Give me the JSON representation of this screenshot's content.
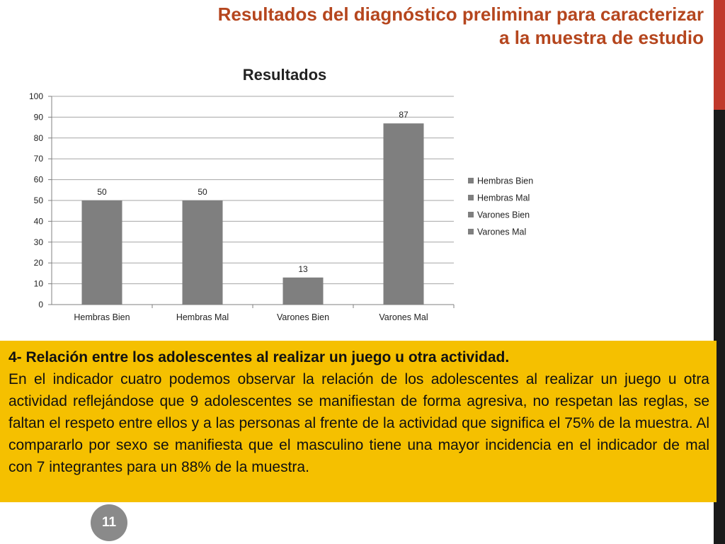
{
  "slide": {
    "title_line1": "Resultados del diagnóstico preliminar para caracterizar",
    "title_line2": "a la muestra de estudio",
    "page_number": "11"
  },
  "colors": {
    "title": "#b5461e",
    "bar": "#7f7f7f",
    "textbox_bg": "#f5c000",
    "accent_red": "#c0392b"
  },
  "chart_data": {
    "type": "bar",
    "title": "Resultados",
    "categories": [
      "Hembras Bien",
      "Hembras Mal",
      "Varones Bien",
      "Varones Mal"
    ],
    "values": [
      50,
      50,
      13,
      87
    ],
    "data_labels": [
      "50",
      "50",
      "13",
      "87"
    ],
    "ylim": [
      0,
      100
    ],
    "yticks": [
      0,
      10,
      20,
      30,
      40,
      50,
      60,
      70,
      80,
      90,
      100
    ],
    "grid": true,
    "legend_position": "right",
    "legend": [
      "Hembras Bien",
      "Hembras Mal",
      "Varones Bien",
      "Varones Mal"
    ]
  },
  "textbox": {
    "heading": "4- Relación entre los adolescentes al realizar un juego u otra actividad.",
    "body": "En el indicador cuatro podemos observar la relación de los adolescentes al realizar un juego u otra actividad reflejándose que 9 adolescentes se manifiestan de forma agresiva, no respetan las reglas, se faltan el respeto entre ellos y a las personas al frente de la actividad que significa el 75% de la muestra. Al compararlo por sexo se manifiesta que el   masculino tiene una mayor incidencia en el indicador de mal con 7 integrantes para un 88% de la muestra."
  }
}
